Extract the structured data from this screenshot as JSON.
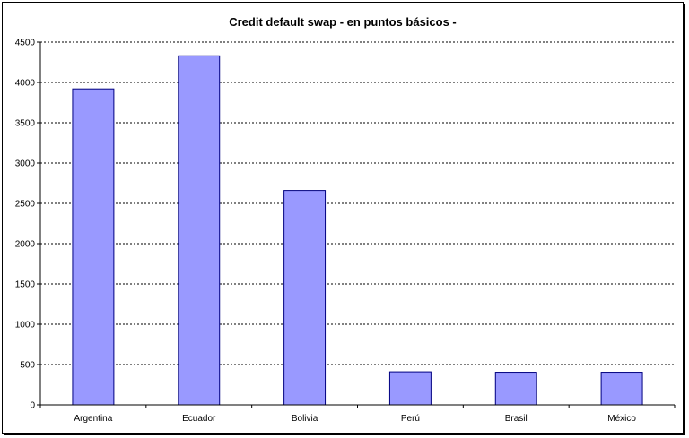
{
  "chart_data": {
    "type": "bar",
    "title": "Credit default swap - en puntos básicos -",
    "xlabel": "",
    "ylabel": "",
    "categories": [
      "Argentina",
      "Ecuador",
      "Bolivia",
      "Perú",
      "Brasil",
      "México"
    ],
    "values": [
      3920,
      4330,
      2660,
      410,
      405,
      405
    ],
    "ylim": [
      0,
      4500
    ],
    "yticks": [
      "0",
      "500",
      "1000",
      "1500",
      "2000",
      "2500",
      "3000",
      "3500",
      "4000",
      "4500"
    ],
    "grid": "horizontal dashed",
    "legend": "none",
    "colors": {
      "bar_fill": "#9999ff",
      "bar_stroke": "#000080",
      "grid": "#000000",
      "axis": "#000000"
    }
  }
}
